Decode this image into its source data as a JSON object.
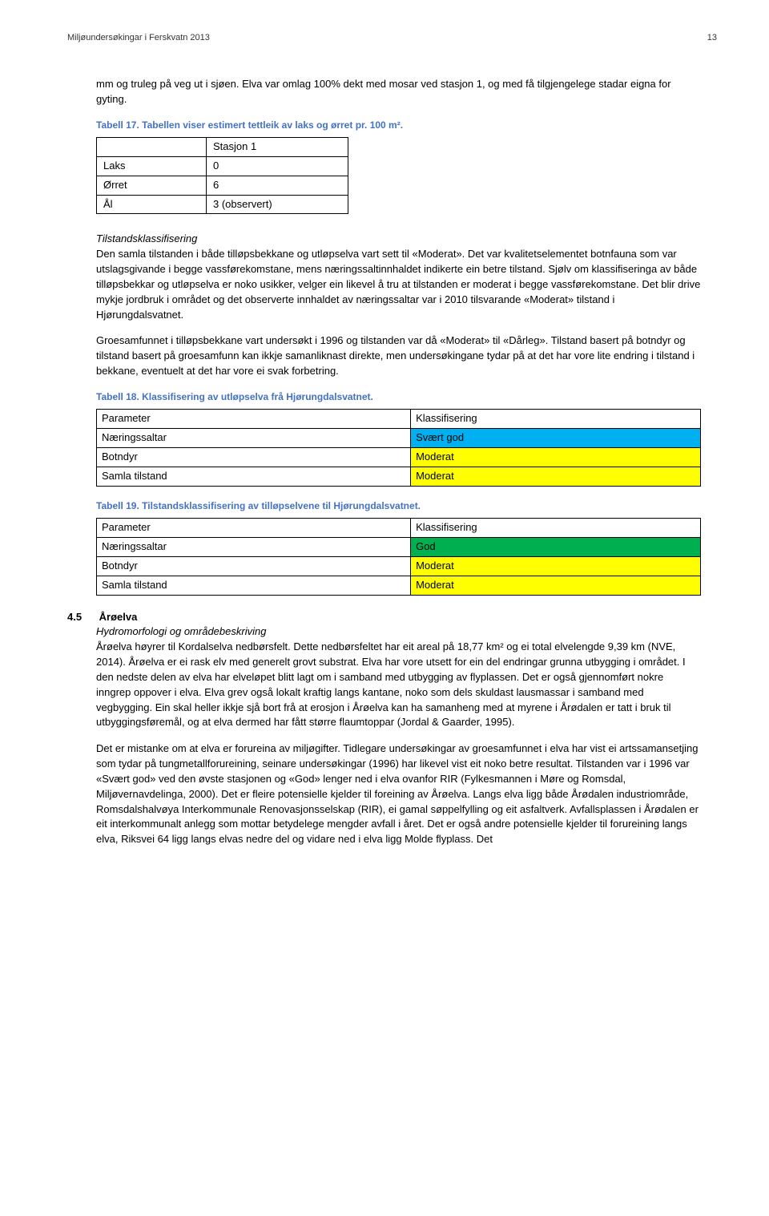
{
  "header": {
    "left": "Miljøundersøkingar i Ferskvatn 2013",
    "page": "13"
  },
  "intro": "mm og truleg på veg ut i sjøen. Elva var omlag 100% dekt med mosar ved stasjon 1, og med få tilgjengelege stadar eigna for gyting.",
  "tabell17_caption": "Tabell 17. Tabellen viser estimert tettleik av laks og ørret pr. 100 m².",
  "table1": {
    "header_label": "Stasjon 1",
    "rows": [
      {
        "name": "Laks",
        "val": "0"
      },
      {
        "name": "Ørret",
        "val": "6"
      },
      {
        "name": "Ål",
        "val": "3 (observert)"
      }
    ]
  },
  "tilstand_head": "Tilstandsklassifisering",
  "tilstand_para": "Den samla tilstanden i både tilløpsbekkane og utløpselva vart sett til «Moderat». Det var kvalitetselementet botnfauna som var utslagsgivande i begge vassførekomstane, mens næringssaltinnhaldet indikerte ein betre tilstand. Sjølv om klassifiseringa av både tilløpsbekkar og utløpselva er noko usikker, velger ein likevel å tru at tilstanden er moderat i begge vassførekomstane. Det blir drive mykje jordbruk i området og det observerte innhaldet av næringssaltar var i 2010 tilsvarande «Moderat» tilstand i Hjørungdalsvatnet.",
  "groe_para": "Groesamfunnet i tilløpsbekkane vart undersøkt i 1996 og tilstanden var då «Moderat» til «Dårleg». Tilstand basert på botndyr og tilstand basert på groesamfunn kan ikkje samanliknast direkte, men undersøkingane tydar på at det har vore lite endring i tilstand i bekkane, eventuelt at det har vore ei svak forbetring.",
  "tabell18_caption": "Tabell 18. Klassifisering av utløpselva frå Hjørungdalsvatnet.",
  "table18": {
    "h1": "Parameter",
    "h2": "Klassifisering",
    "rows": [
      {
        "p": "Næringssaltar",
        "k": "Svært god",
        "color": "#00b0f0"
      },
      {
        "p": "Botndyr",
        "k": "Moderat",
        "color": "#ffff00"
      },
      {
        "p": "Samla tilstand",
        "k": "Moderat",
        "color": "#ffff00"
      }
    ]
  },
  "tabell19_caption": "Tabell 19. Tilstandsklassifisering av tilløpselvene til Hjørungdalsvatnet.",
  "table19": {
    "h1": "Parameter",
    "h2": "Klassifisering",
    "rows": [
      {
        "p": "Næringssaltar",
        "k": "God",
        "color": "#00b050"
      },
      {
        "p": "Botndyr",
        "k": "Moderat",
        "color": "#ffff00"
      },
      {
        "p": "Samla tilstand",
        "k": "Moderat",
        "color": "#ffff00"
      }
    ]
  },
  "section": {
    "num": "4.5",
    "title": "Årøelva",
    "subhead": "Hydromorfologi og områdebeskriving",
    "para1": "Årøelva høyrer til Kordalselva nedbørsfelt. Dette nedbørsfeltet har eit areal på 18,77 km² og ei total elvelengde 9,39 km (NVE, 2014). Årøelva er ei rask elv med generelt grovt substrat. Elva har vore utsett for ein del endringar grunna utbygging i området. I den nedste delen av elva har elveløpet blitt lagt om i samband med utbygging av flyplassen. Det er også gjennomført nokre inngrep oppover i elva. Elva grev også lokalt kraftig langs kantane, noko som dels skuldast lausmassar i samband med vegbygging. Ein skal heller ikkje sjå bort frå at erosjon i Årøelva kan ha samanheng med at myrene i Årødalen er tatt i bruk til utbyggingsføremål, og at elva dermed har fått større flaumtoppar (Jordal & Gaarder, 1995).",
    "para2": "Det er mistanke om at elva er forureina av miljøgifter. Tidlegare undersøkingar av groesamfunnet i elva har vist ei artssamansetjing som tydar på tungmetallforureining, seinare undersøkingar (1996) har likevel vist eit noko betre resultat. Tilstanden var i 1996 var «Svært god» ved den øvste stasjonen og «God» lenger ned i elva ovanfor RIR (Fylkesmannen i Møre og Romsdal, Miljøvernavdelinga, 2000). Det er fleire potensielle kjelder til foreining av Årøelva. Langs elva ligg både Årødalen industriområde, Romsdalshalvøya Interkommunale Renovasjonsselskap (RIR), ei gamal søppelfylling og eit asfaltverk. Avfallsplassen i Årødalen er eit interkommunalt anlegg som mottar betydelege mengder avfall i året. Det er også andre potensielle kjelder til forureining langs elva, Riksvei 64 ligg langs elvas nedre del og vidare ned i elva ligg Molde flyplass. Det"
  },
  "colors": {
    "tabell_caption": "#4472c4",
    "svart_god": "#00b0f0",
    "god": "#00b050",
    "moderat": "#ffff00"
  }
}
